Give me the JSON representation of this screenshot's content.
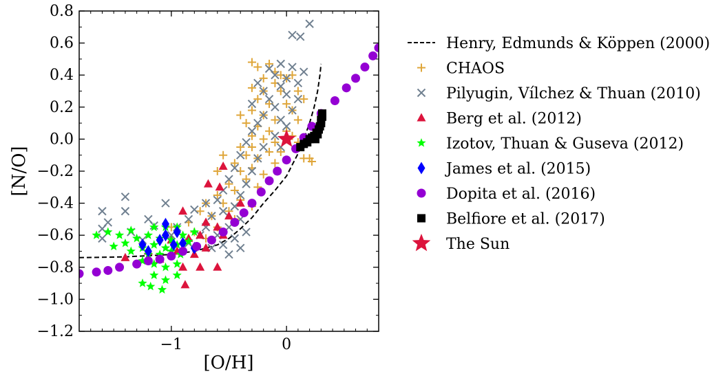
{
  "chart_data": {
    "type": "scatter",
    "xlabel": "[O/H]",
    "ylabel": "[N/O]",
    "xlim": [
      -1.8,
      0.8
    ],
    "ylim": [
      -1.2,
      0.8
    ],
    "x_ticks": [
      {
        "v": -1,
        "label": "−1"
      },
      {
        "v": 0,
        "label": "0"
      }
    ],
    "y_ticks": [
      {
        "v": 0.8,
        "label": "0.8"
      },
      {
        "v": 0.6,
        "label": "0.6"
      },
      {
        "v": 0.4,
        "label": "0.4"
      },
      {
        "v": 0.2,
        "label": "0.2"
      },
      {
        "v": 0.0,
        "label": "0.0"
      },
      {
        "v": -0.2,
        "label": "−0.2"
      },
      {
        "v": -0.4,
        "label": "−0.4"
      },
      {
        "v": -0.6,
        "label": "−0.6"
      },
      {
        "v": -0.8,
        "label": "−0.8"
      },
      {
        "v": -1.0,
        "label": "−1.0"
      },
      {
        "v": -1.2,
        "label": "−1.2"
      }
    ],
    "grid": false,
    "legend_position": "outside-right",
    "series": [
      {
        "name": "Henry, Edmunds & Köppen (2000)",
        "kind": "line",
        "marker": "dashed-line",
        "color": "#000000",
        "points": [
          [
            -1.8,
            -0.74
          ],
          [
            -1.4,
            -0.735
          ],
          [
            -1.0,
            -0.72
          ],
          [
            -0.8,
            -0.7
          ],
          [
            -0.6,
            -0.66
          ],
          [
            -0.5,
            -0.62
          ],
          [
            -0.4,
            -0.56
          ],
          [
            -0.3,
            -0.49
          ],
          [
            -0.2,
            -0.4
          ],
          [
            -0.1,
            -0.32
          ],
          [
            0.0,
            -0.23
          ],
          [
            0.05,
            -0.16
          ],
          [
            0.1,
            -0.09
          ],
          [
            0.15,
            0.0
          ],
          [
            0.2,
            0.1
          ],
          [
            0.24,
            0.2
          ],
          [
            0.27,
            0.3
          ],
          [
            0.29,
            0.4
          ],
          [
            0.3,
            0.47
          ]
        ]
      },
      {
        "name": "CHAOS",
        "kind": "scatter",
        "marker": "plus",
        "color": "#dfa63a",
        "points": [
          [
            -0.3,
            0.48
          ],
          [
            -0.25,
            0.45
          ],
          [
            -0.15,
            0.47
          ],
          [
            -0.1,
            0.42
          ],
          [
            -0.05,
            0.4
          ],
          [
            0.0,
            0.38
          ],
          [
            0.05,
            0.4
          ],
          [
            -0.2,
            0.38
          ],
          [
            -0.1,
            0.35
          ],
          [
            -0.3,
            0.32
          ],
          [
            -0.2,
            0.3
          ],
          [
            -0.05,
            0.3
          ],
          [
            0.1,
            0.3
          ],
          [
            0.15,
            0.25
          ],
          [
            -0.25,
            0.25
          ],
          [
            -0.15,
            0.22
          ],
          [
            0.0,
            0.22
          ],
          [
            0.05,
            0.18
          ],
          [
            -0.4,
            0.15
          ],
          [
            -0.3,
            0.18
          ],
          [
            -0.2,
            0.15
          ],
          [
            -0.1,
            0.12
          ],
          [
            0.1,
            0.12
          ],
          [
            -0.35,
            0.1
          ],
          [
            -0.25,
            0.08
          ],
          [
            -0.15,
            0.05
          ],
          [
            0.0,
            0.05
          ],
          [
            0.05,
            0.02
          ],
          [
            -0.3,
            0.02
          ],
          [
            -0.2,
            0.0
          ],
          [
            -0.1,
            -0.02
          ],
          [
            0.1,
            -0.02
          ],
          [
            -0.4,
            -0.05
          ],
          [
            -0.3,
            -0.05
          ],
          [
            -0.15,
            -0.08
          ],
          [
            -0.05,
            -0.08
          ],
          [
            -0.55,
            -0.1
          ],
          [
            -0.35,
            -0.1
          ],
          [
            -0.25,
            -0.12
          ],
          [
            0.15,
            -0.12
          ],
          [
            0.2,
            -0.12
          ],
          [
            0.22,
            -0.14
          ],
          [
            -0.45,
            -0.15
          ],
          [
            -0.3,
            -0.18
          ],
          [
            -0.1,
            -0.15
          ],
          [
            -0.6,
            -0.2
          ],
          [
            -0.4,
            -0.2
          ],
          [
            -0.2,
            -0.22
          ],
          [
            -0.35,
            -0.25
          ],
          [
            -0.5,
            -0.28
          ],
          [
            -0.25,
            -0.3
          ],
          [
            -0.45,
            -0.32
          ],
          [
            -0.6,
            -0.35
          ],
          [
            -0.4,
            -0.38
          ],
          [
            -0.55,
            -0.4
          ],
          [
            -0.7,
            -0.4
          ],
          [
            -0.3,
            -0.42
          ],
          [
            -0.5,
            -0.45
          ],
          [
            -0.75,
            -0.45
          ],
          [
            -0.65,
            -0.48
          ],
          [
            -0.45,
            -0.5
          ],
          [
            -0.85,
            -0.52
          ],
          [
            -0.6,
            -0.55
          ],
          [
            -0.8,
            -0.58
          ],
          [
            -0.7,
            -0.62
          ],
          [
            -1.0,
            -0.55
          ],
          [
            -0.9,
            -0.65
          ]
        ]
      },
      {
        "name": "Pilyugin, Vı́lchez & Thuan (2010)",
        "kind": "scatter",
        "marker": "cross",
        "color": "#708090",
        "points": [
          [
            0.2,
            0.72
          ],
          [
            0.05,
            0.65
          ],
          [
            0.12,
            0.64
          ],
          [
            -0.05,
            0.47
          ],
          [
            -0.15,
            0.44
          ],
          [
            0.05,
            0.45
          ],
          [
            0.15,
            0.42
          ],
          [
            -0.1,
            0.4
          ],
          [
            0.0,
            0.38
          ],
          [
            -0.25,
            0.35
          ],
          [
            -0.05,
            0.33
          ],
          [
            0.1,
            0.35
          ],
          [
            -0.2,
            0.3
          ],
          [
            0.0,
            0.28
          ],
          [
            -0.15,
            0.25
          ],
          [
            0.1,
            0.25
          ],
          [
            -0.3,
            0.22
          ],
          [
            -0.1,
            0.2
          ],
          [
            0.05,
            0.18
          ],
          [
            -0.2,
            0.15
          ],
          [
            -0.05,
            0.12
          ],
          [
            -0.25,
            0.1
          ],
          [
            0.0,
            0.08
          ],
          [
            -0.3,
            0.05
          ],
          [
            -0.1,
            0.02
          ],
          [
            -0.35,
            -0.02
          ],
          [
            -0.2,
            -0.05
          ],
          [
            -0.05,
            -0.05
          ],
          [
            -0.4,
            -0.1
          ],
          [
            -0.25,
            -0.12
          ],
          [
            -0.45,
            -0.18
          ],
          [
            -0.3,
            -0.2
          ],
          [
            -0.5,
            -0.25
          ],
          [
            -0.35,
            -0.28
          ],
          [
            -0.55,
            -0.32
          ],
          [
            -0.4,
            -0.35
          ],
          [
            -0.6,
            -0.38
          ],
          [
            -0.45,
            -0.42
          ],
          [
            -0.7,
            -0.4
          ],
          [
            -0.55,
            -0.45
          ],
          [
            -0.8,
            -0.44
          ],
          [
            -0.65,
            -0.48
          ],
          [
            -0.4,
            -0.5
          ],
          [
            -0.85,
            -0.5
          ],
          [
            -0.5,
            -0.55
          ],
          [
            -0.7,
            -0.55
          ],
          [
            -0.35,
            -0.58
          ],
          [
            -0.6,
            -0.6
          ],
          [
            -0.45,
            -0.62
          ],
          [
            -0.75,
            -0.6
          ],
          [
            -0.55,
            -0.66
          ],
          [
            -0.4,
            -0.68
          ],
          [
            -0.65,
            -0.68
          ],
          [
            -0.5,
            -0.72
          ],
          [
            -0.85,
            -0.65
          ],
          [
            -1.05,
            -0.4
          ],
          [
            -1.2,
            -0.5
          ],
          [
            -1.4,
            -0.45
          ],
          [
            -1.6,
            -0.45
          ],
          [
            -1.55,
            -0.52
          ],
          [
            -1.4,
            -0.36
          ],
          [
            -1.6,
            -0.56
          ],
          [
            -1.35,
            -0.58
          ],
          [
            -1.6,
            -0.62
          ],
          [
            -1.15,
            -0.54
          ],
          [
            -1.0,
            -0.6
          ],
          [
            -0.95,
            -0.55
          ],
          [
            -1.25,
            -0.63
          ]
        ]
      },
      {
        "name": "Berg et al. (2012)",
        "kind": "scatter",
        "marker": "triangle",
        "color": "#dc143c",
        "points": [
          [
            -0.55,
            -0.17
          ],
          [
            -0.68,
            -0.28
          ],
          [
            -0.58,
            -0.3
          ],
          [
            -0.4,
            -0.4
          ],
          [
            -0.5,
            -0.48
          ],
          [
            -0.9,
            -0.45
          ],
          [
            -0.7,
            -0.52
          ],
          [
            -0.6,
            -0.55
          ],
          [
            -0.75,
            -0.6
          ],
          [
            -0.55,
            -0.6
          ],
          [
            -0.85,
            -0.62
          ],
          [
            -1.0,
            -0.63
          ],
          [
            -1.2,
            -0.7
          ],
          [
            -0.95,
            -0.7
          ],
          [
            -0.8,
            -0.72
          ],
          [
            -0.7,
            -0.68
          ],
          [
            -1.1,
            -0.75
          ],
          [
            -0.9,
            -0.8
          ],
          [
            -0.6,
            -0.8
          ],
          [
            -1.4,
            -0.74
          ],
          [
            -0.75,
            -0.8
          ],
          [
            -0.88,
            -0.91
          ]
        ]
      },
      {
        "name": "Izotov, Thuan & Guseva (2012)",
        "kind": "scatter",
        "marker": "star",
        "color": "#00ff00",
        "points": [
          [
            -1.35,
            -0.57
          ],
          [
            -1.15,
            -0.55
          ],
          [
            -1.05,
            -0.55
          ],
          [
            -0.95,
            -0.55
          ],
          [
            -1.55,
            -0.58
          ],
          [
            -1.45,
            -0.6
          ],
          [
            -1.3,
            -0.62
          ],
          [
            -1.2,
            -0.6
          ],
          [
            -1.1,
            -0.62
          ],
          [
            -1.0,
            -0.63
          ],
          [
            -0.9,
            -0.6
          ],
          [
            -1.4,
            -0.65
          ],
          [
            -1.25,
            -0.68
          ],
          [
            -1.15,
            -0.66
          ],
          [
            -1.05,
            -0.68
          ],
          [
            -0.95,
            -0.66
          ],
          [
            -0.85,
            -0.64
          ],
          [
            -0.8,
            -0.58
          ],
          [
            -1.35,
            -0.7
          ],
          [
            -1.2,
            -0.72
          ],
          [
            -1.1,
            -0.72
          ],
          [
            -1.0,
            -0.7
          ],
          [
            -0.92,
            -0.72
          ],
          [
            -1.25,
            -0.76
          ],
          [
            -1.15,
            -0.78
          ],
          [
            -1.05,
            -0.8
          ],
          [
            -0.95,
            -0.78
          ],
          [
            -1.15,
            -0.85
          ],
          [
            -1.05,
            -0.88
          ],
          [
            -1.25,
            -0.9
          ],
          [
            -1.18,
            -0.92
          ],
          [
            -1.08,
            -0.94
          ],
          [
            -0.95,
            -0.85
          ],
          [
            -1.65,
            -0.6
          ],
          [
            -1.5,
            -0.67
          ]
        ]
      },
      {
        "name": "James et al. (2015)",
        "kind": "scatter",
        "marker": "diamond",
        "color": "#0000ff",
        "points": [
          [
            -1.25,
            -0.66
          ],
          [
            -1.1,
            -0.63
          ],
          [
            -1.05,
            -0.6
          ],
          [
            -0.95,
            -0.58
          ],
          [
            -1.2,
            -0.7
          ],
          [
            -0.9,
            -0.65
          ],
          [
            -0.8,
            -0.68
          ],
          [
            -1.05,
            -0.53
          ],
          [
            -0.98,
            -0.66
          ]
        ]
      },
      {
        "name": "Dopita et al. (2016)",
        "kind": "scatter",
        "marker": "circle",
        "color": "#9400d3",
        "points": [
          [
            -1.8,
            -0.84
          ],
          [
            -1.65,
            -0.83
          ],
          [
            -1.55,
            -0.82
          ],
          [
            -1.45,
            -0.8
          ],
          [
            -1.3,
            -0.78
          ],
          [
            -1.2,
            -0.76
          ],
          [
            -1.1,
            -0.75
          ],
          [
            -1.0,
            -0.73
          ],
          [
            -0.9,
            -0.7
          ],
          [
            -0.78,
            -0.67
          ],
          [
            -0.65,
            -0.63
          ],
          [
            -0.55,
            -0.58
          ],
          [
            -0.45,
            -0.52
          ],
          [
            -0.37,
            -0.46
          ],
          [
            -0.3,
            -0.4
          ],
          [
            -0.22,
            -0.33
          ],
          [
            -0.15,
            -0.26
          ],
          [
            -0.08,
            -0.2
          ],
          [
            0.0,
            -0.13
          ],
          [
            0.08,
            -0.06
          ],
          [
            0.15,
            0.01
          ],
          [
            0.22,
            0.08
          ],
          [
            0.3,
            0.16
          ],
          [
            0.42,
            0.24
          ],
          [
            0.52,
            0.32
          ],
          [
            0.6,
            0.38
          ],
          [
            0.68,
            0.45
          ],
          [
            0.75,
            0.52
          ],
          [
            0.8,
            0.57
          ]
        ]
      },
      {
        "name": "Belfiore et al. (2017)",
        "kind": "scatter",
        "marker": "square",
        "color": "#000000",
        "points": [
          [
            0.12,
            -0.05
          ],
          [
            0.15,
            -0.03
          ],
          [
            0.18,
            -0.02
          ],
          [
            0.2,
            0.0
          ],
          [
            0.22,
            0.01
          ],
          [
            0.24,
            0.02
          ],
          [
            0.26,
            0.04
          ],
          [
            0.28,
            0.06
          ],
          [
            0.29,
            0.08
          ],
          [
            0.3,
            0.1
          ],
          [
            0.3,
            0.12
          ],
          [
            0.31,
            0.14
          ],
          [
            0.31,
            0.16
          ],
          [
            0.27,
            0.03
          ],
          [
            0.25,
            0.0
          ]
        ]
      },
      {
        "name": "The Sun",
        "kind": "scatter",
        "marker": "bigstar",
        "color": "#dc143c",
        "points": [
          [
            0.0,
            0.0
          ]
        ]
      }
    ]
  }
}
